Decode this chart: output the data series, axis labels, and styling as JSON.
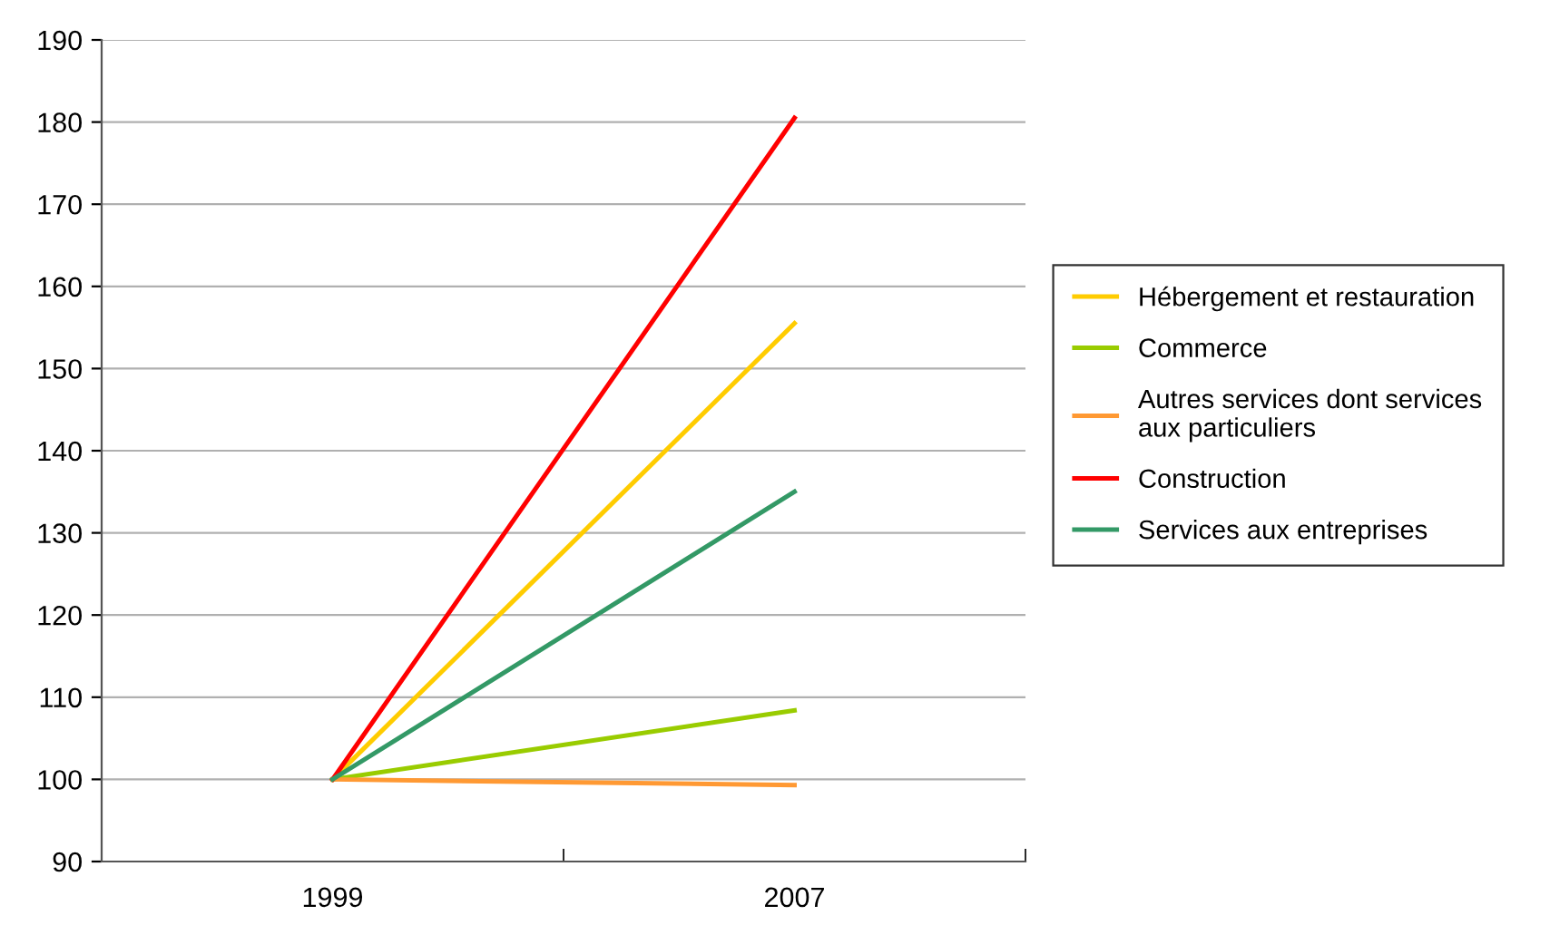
{
  "chart_data": {
    "type": "line",
    "categories": [
      "1999",
      "2007"
    ],
    "series": [
      {
        "name": "Hébergement et restauration",
        "color": "#ffcc00",
        "values": [
          100,
          155.5
        ]
      },
      {
        "name": "Commerce",
        "color": "#99cc00",
        "values": [
          100,
          108.4
        ]
      },
      {
        "name": "Autres services dont services aux particuliers",
        "color": "#ff9933",
        "values": [
          100,
          99.3
        ]
      },
      {
        "name": "Construction",
        "color": "#ff0000",
        "values": [
          100,
          180.5
        ]
      },
      {
        "name": "Services aux entreprises",
        "color": "#339966",
        "values": [
          100,
          135
        ]
      }
    ],
    "ylim": [
      90,
      190
    ],
    "yticks": [
      90,
      100,
      110,
      120,
      130,
      140,
      150,
      160,
      170,
      180,
      190
    ],
    "grid": "y",
    "legend": "right",
    "marker": "none",
    "line_style": "solid"
  }
}
